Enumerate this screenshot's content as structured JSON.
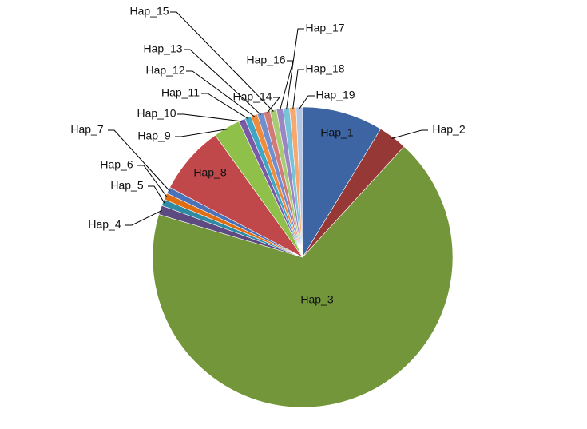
{
  "chart_data": {
    "type": "pie",
    "categories": [
      "Hap_1",
      "Hap_2",
      "Hap_3",
      "Hap_4",
      "Hap_5",
      "Hap_6",
      "Hap_7",
      "Hap_8",
      "Hap_9",
      "Hap_10",
      "Hap_11",
      "Hap_12",
      "Hap_13",
      "Hap_14",
      "Hap_15",
      "Hap_16",
      "Hap_17",
      "Hap_18",
      "Hap_19"
    ],
    "values": [
      8.7,
      3.1,
      67.8,
      1.0,
      0.7,
      0.7,
      0.7,
      7.4,
      2.9,
      0.7,
      0.7,
      0.7,
      0.7,
      0.7,
      0.7,
      0.7,
      0.7,
      0.7,
      0.7
    ],
    "colors": [
      "#3d64a3",
      "#963836",
      "#73963a",
      "#5d4a80",
      "#2f8aa3",
      "#e06d12",
      "#4a72b8",
      "#c0474a",
      "#8fc04a",
      "#7a5aa6",
      "#3fa6c4",
      "#f08a3c",
      "#6f8fcf",
      "#d27a78",
      "#a7cc73",
      "#9a86c2",
      "#78c3d9",
      "#f7a86d",
      "#b4c6e6"
    ]
  }
}
